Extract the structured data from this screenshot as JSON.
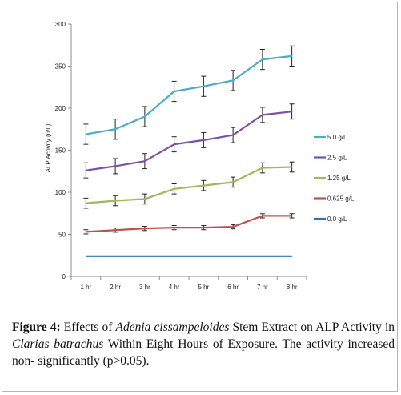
{
  "chart_data": {
    "type": "line",
    "categories": [
      "1 hr",
      "2 hr",
      "3 hr",
      "4 hr",
      "5 hr",
      "6 hr",
      "7 hr",
      "8 hr"
    ],
    "ylabel": "ALP Activity (u/L)",
    "xlabel": "",
    "ylim": [
      0,
      300
    ],
    "yticks": [
      0,
      50,
      100,
      150,
      200,
      250,
      300
    ],
    "grid": false,
    "legend_position": "right",
    "error_bars": true,
    "series": [
      {
        "name": "5.0 g/L",
        "color": "#4bacc6",
        "values": [
          169,
          175,
          190,
          220,
          226,
          233,
          258,
          262
        ],
        "errors": [
          12,
          12,
          12,
          12,
          12,
          12,
          12,
          12
        ]
      },
      {
        "name": "2.5 g/L",
        "color": "#7b4fa3",
        "values": [
          126,
          131,
          137,
          157,
          162,
          168,
          192,
          196
        ],
        "errors": [
          9,
          9,
          9,
          9,
          9,
          9,
          9,
          9
        ]
      },
      {
        "name": "1.25 g/L",
        "color": "#9bbb59",
        "values": [
          87,
          90,
          92,
          104,
          108,
          112,
          129,
          130
        ],
        "errors": [
          6,
          6,
          6,
          6,
          6,
          6,
          6,
          6
        ]
      },
      {
        "name": "0.625 g/L",
        "color": "#c0504d",
        "values": [
          53,
          55,
          57,
          58,
          58,
          59,
          72,
          72
        ],
        "errors": [
          2.5,
          2.5,
          2.5,
          2.5,
          2.5,
          2.5,
          2.5,
          2.5
        ]
      },
      {
        "name": "0.0 g/L",
        "color": "#2e75b6",
        "values": [
          24,
          24,
          24,
          24,
          24,
          24,
          24,
          24
        ],
        "errors": []
      }
    ]
  },
  "caption": {
    "label": "Figure 4:",
    "text1": " Effects of ",
    "italic1": "Adenia cissampeloides",
    "text2": " Stem Extract on ALP Activity in ",
    "italic2": "Clarias batrachus",
    "text3": " Within Eight Hours of Exposure. The activity increased non- significantly (p>0.05)."
  }
}
